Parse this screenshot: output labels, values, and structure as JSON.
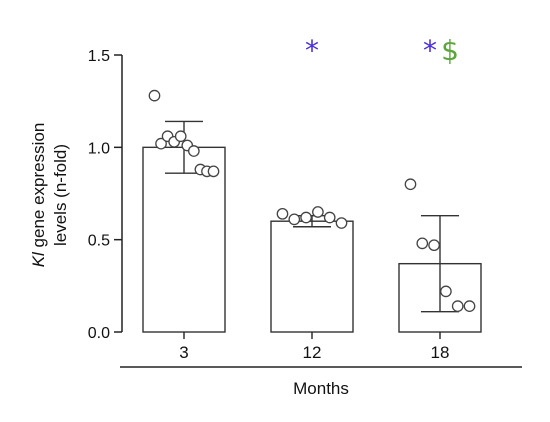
{
  "chart_data": {
    "type": "bar",
    "title": "",
    "xlabel": "Months",
    "ylabel_line1_italic": "Kl",
    "ylabel_line1_rest": " gene expression",
    "ylabel_line2": "levels (n-fold)",
    "categories": [
      "3",
      "12",
      "18"
    ],
    "values": [
      1.0,
      0.6,
      0.37
    ],
    "error": [
      0.14,
      0.03,
      0.26
    ],
    "ylim": [
      0,
      1.5
    ],
    "yticks": [
      "0.0",
      "0.5",
      "1.0",
      "1.5"
    ],
    "ytick_values": [
      0,
      0.5,
      1.0,
      1.5
    ],
    "points": [
      [
        1.28,
        1.02,
        1.06,
        1.03,
        1.06,
        1.01,
        0.98,
        0.88,
        0.87,
        0.87
      ],
      [
        0.64,
        0.61,
        0.62,
        0.65,
        0.62,
        0.59
      ],
      [
        0.8,
        0.48,
        0.47,
        0.22,
        0.14,
        0.14
      ]
    ],
    "significance": [
      {
        "category": "12",
        "markers": [
          {
            "symbol": "*",
            "color": "#4b2fe0"
          }
        ]
      },
      {
        "category": "18",
        "markers": [
          {
            "symbol": "*",
            "color": "#4b2fe0"
          },
          {
            "symbol": "$",
            "color": "#5aa63a"
          }
        ]
      }
    ],
    "grid": false,
    "bar_color": "#ffffff",
    "edge_color": "#333333"
  }
}
